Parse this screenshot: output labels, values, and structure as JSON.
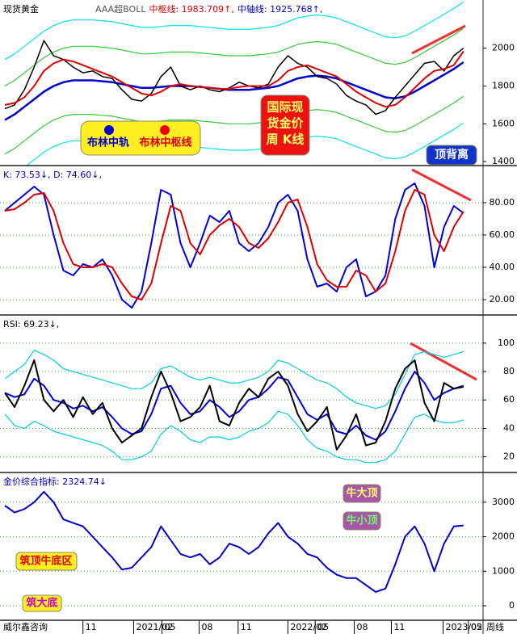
{
  "chart_data": [
    {
      "type": "line",
      "title": "现货黄金",
      "header": [
        {
          "text": "AAA超BOLL",
          "color": "#555555"
        },
        {
          "text": "中枢线: 1983.709↑,",
          "color": "#e00000"
        },
        {
          "text": "中轴线: 1925.768↑,",
          "color": "#0000cc"
        }
      ],
      "xlim": [
        -0.5,
        49
      ],
      "ylim": [
        1379,
        2255
      ],
      "yticks": [
        1400,
        1600,
        1800,
        2000
      ],
      "grid": false,
      "series": [
        {
          "color": "#00e5ee",
          "values": [
            1940,
            1970,
            2010,
            2050,
            2090,
            2120,
            2140,
            2150,
            2150,
            2150,
            2145,
            2140,
            2130,
            2120,
            2110,
            2110,
            2115,
            2120,
            2120,
            2120,
            2115,
            2110,
            2105,
            2100,
            2100,
            2100,
            2105,
            2110,
            2120,
            2140,
            2160,
            2170,
            2175,
            2170,
            2160,
            2140,
            2120,
            2100,
            2080,
            2060,
            2055,
            2065,
            2090,
            2120,
            2150,
            2180,
            2210,
            2245
          ]
        },
        {
          "color": "#00e5ee",
          "values": [
            1300,
            1330,
            1370,
            1410,
            1450,
            1480,
            1500,
            1510,
            1510,
            1510,
            1505,
            1500,
            1490,
            1480,
            1470,
            1470,
            1475,
            1480,
            1480,
            1480,
            1475,
            1470,
            1465,
            1460,
            1460,
            1460,
            1465,
            1470,
            1480,
            1500,
            1520,
            1530,
            1535,
            1530,
            1520,
            1500,
            1480,
            1460,
            1440,
            1420,
            1415,
            1425,
            1450,
            1480,
            1510,
            1540,
            1570,
            1605
          ]
        },
        {
          "color": "#33cc33",
          "values": [
            1800,
            1830,
            1870,
            1910,
            1950,
            1980,
            2000,
            2010,
            2010,
            2010,
            2005,
            2000,
            1990,
            1980,
            1970,
            1970,
            1975,
            1980,
            1980,
            1980,
            1975,
            1970,
            1965,
            1960,
            1960,
            1960,
            1965,
            1970,
            1980,
            2000,
            2020,
            2030,
            2035,
            2030,
            2020,
            2000,
            1980,
            1960,
            1940,
            1920,
            1915,
            1925,
            1950,
            1980,
            2010,
            2040,
            2070,
            2105
          ]
        },
        {
          "color": "#33cc33",
          "values": [
            1440,
            1470,
            1510,
            1550,
            1590,
            1620,
            1640,
            1650,
            1650,
            1650,
            1645,
            1640,
            1630,
            1620,
            1610,
            1610,
            1615,
            1620,
            1620,
            1620,
            1615,
            1610,
            1605,
            1600,
            1600,
            1600,
            1605,
            1610,
            1620,
            1640,
            1660,
            1670,
            1675,
            1670,
            1660,
            1640,
            1620,
            1600,
            1580,
            1560,
            1555,
            1565,
            1590,
            1620,
            1650,
            1680,
            1710,
            1745
          ]
        },
        {
          "color": "#0000cc",
          "width": 2.5,
          "values": [
            1620,
            1650,
            1690,
            1730,
            1770,
            1800,
            1820,
            1830,
            1830,
            1830,
            1825,
            1820,
            1810,
            1800,
            1790,
            1790,
            1795,
            1800,
            1800,
            1800,
            1795,
            1790,
            1785,
            1780,
            1780,
            1780,
            1785,
            1790,
            1800,
            1820,
            1840,
            1850,
            1855,
            1850,
            1840,
            1820,
            1800,
            1780,
            1760,
            1740,
            1735,
            1745,
            1770,
            1800,
            1830,
            1860,
            1890,
            1925.768
          ]
        },
        {
          "color": "#000000",
          "width": 1.5,
          "values": [
            1680,
            1700,
            1780,
            1900,
            2040,
            1960,
            1940,
            1900,
            1870,
            1880,
            1850,
            1840,
            1780,
            1730,
            1720,
            1760,
            1850,
            1900,
            1800,
            1780,
            1800,
            1780,
            1770,
            1790,
            1820,
            1800,
            1790,
            1810,
            1900,
            1960,
            1920,
            1900,
            1850,
            1840,
            1810,
            1750,
            1720,
            1700,
            1650,
            1670,
            1740,
            1800,
            1860,
            1920,
            1930,
            1880,
            1960,
            2000
          ]
        },
        {
          "color": "#e00000",
          "width": 2,
          "values": [
            1700,
            1710,
            1740,
            1800,
            1880,
            1920,
            1940,
            1930,
            1910,
            1890,
            1870,
            1850,
            1820,
            1790,
            1760,
            1750,
            1770,
            1800,
            1810,
            1800,
            1795,
            1790,
            1785,
            1785,
            1795,
            1800,
            1800,
            1800,
            1830,
            1880,
            1900,
            1910,
            1890,
            1870,
            1850,
            1810,
            1770,
            1740,
            1710,
            1690,
            1700,
            1740,
            1790,
            1840,
            1880,
            1890,
            1910,
            1983.709
          ]
        }
      ],
      "annotations": [
        {
          "lines": [
            "布林中轨"
          ],
          "color": "#0000cc"
        },
        {
          "lines": [
            "布林中枢线"
          ],
          "color": "#e00000"
        },
        {
          "lines": [
            "国际现",
            "货金价",
            "周  K线"
          ],
          "color": "#ffff66"
        },
        {
          "lines": [
            "顶背离"
          ],
          "color": "#ffffff"
        }
      ]
    },
    {
      "type": "line",
      "title": "K: 73.53↓, D: 74.60↓,",
      "title_color": "#0000cc",
      "xlim": [
        -0.5,
        49
      ],
      "ylim": [
        10.5,
        103
      ],
      "grid": true,
      "yticks": [
        {
          "value": 20,
          "label": "20.00"
        },
        {
          "value": 40,
          "label": "40.00"
        },
        {
          "value": 60,
          "label": "60.00"
        },
        {
          "value": 80,
          "label": "80.00"
        }
      ],
      "series": [
        {
          "color": "#0000dd",
          "width": 2,
          "values": [
            75,
            80,
            85,
            90,
            85,
            60,
            38,
            35,
            42,
            40,
            45,
            35,
            20,
            15,
            25,
            55,
            88,
            85,
            55,
            40,
            55,
            72,
            68,
            75,
            55,
            50,
            55,
            65,
            80,
            85,
            75,
            45,
            28,
            30,
            25,
            40,
            45,
            22,
            25,
            35,
            70,
            88,
            92,
            78,
            40,
            65,
            78,
            73.53
          ]
        },
        {
          "color": "#e00000",
          "width": 2,
          "values": [
            75,
            76,
            80,
            85,
            86,
            75,
            55,
            42,
            40,
            40,
            42,
            40,
            30,
            22,
            20,
            30,
            55,
            78,
            75,
            55,
            48,
            60,
            66,
            70,
            65,
            55,
            52,
            58,
            68,
            80,
            82,
            65,
            42,
            32,
            28,
            28,
            38,
            35,
            25,
            30,
            50,
            75,
            88,
            85,
            60,
            50,
            65,
            74.6
          ]
        }
      ]
    },
    {
      "type": "line",
      "title": "RSI: 69.23↓,",
      "title_color": "#000000",
      "xlim": [
        -0.5,
        49
      ],
      "ylim": [
        9,
        119.8
      ],
      "yticks": [
        20,
        40,
        60,
        80,
        100
      ],
      "grid": true,
      "series": [
        {
          "color": "#00d0e0",
          "values": [
            75,
            80,
            85,
            95,
            92,
            88,
            82,
            80,
            78,
            76,
            74,
            72,
            70,
            68,
            68,
            72,
            82,
            84,
            80,
            76,
            74,
            76,
            74,
            72,
            72,
            74,
            76,
            80,
            88,
            86,
            82,
            78,
            74,
            72,
            68,
            62,
            58,
            56,
            54,
            56,
            64,
            78,
            92,
            94,
            92,
            90,
            92,
            94
          ]
        },
        {
          "color": "#00d0e0",
          "values": [
            50,
            42,
            40,
            45,
            42,
            38,
            36,
            34,
            32,
            30,
            28,
            24,
            18,
            18,
            20,
            24,
            36,
            42,
            38,
            32,
            30,
            34,
            34,
            32,
            34,
            38,
            40,
            44,
            52,
            50,
            42,
            32,
            26,
            24,
            20,
            18,
            18,
            16,
            16,
            18,
            24,
            36,
            48,
            50,
            46,
            44,
            44,
            46
          ]
        },
        {
          "color": "#0000dd",
          "width": 2,
          "values": [
            65,
            62,
            64,
            75,
            70,
            60,
            58,
            54,
            56,
            52,
            55,
            48,
            40,
            36,
            38,
            50,
            68,
            70,
            58,
            50,
            52,
            60,
            55,
            48,
            52,
            60,
            62,
            68,
            76,
            74,
            62,
            50,
            46,
            50,
            38,
            36,
            42,
            35,
            32,
            38,
            52,
            68,
            80,
            72,
            60,
            65,
            68,
            70
          ]
        },
        {
          "color": "#000000",
          "width": 2,
          "values": [
            65,
            55,
            70,
            88,
            60,
            52,
            60,
            48,
            62,
            50,
            58,
            40,
            30,
            35,
            40,
            62,
            80,
            65,
            45,
            48,
            55,
            70,
            45,
            42,
            58,
            68,
            62,
            75,
            80,
            70,
            50,
            38,
            45,
            55,
            25,
            35,
            50,
            28,
            30,
            45,
            68,
            82,
            88,
            58,
            45,
            72,
            68,
            69.23
          ]
        }
      ]
    },
    {
      "type": "line",
      "title": "金价综合指标: 2324.74↓",
      "title_color": "#0000cc",
      "xlim": [
        -0.5,
        49
      ],
      "ylim": [
        -420,
        3860
      ],
      "yticks": [
        0,
        1000,
        2000,
        3000
      ],
      "grid": true,
      "xticks": [
        {
          "value": 8.0,
          "label": "11"
        },
        {
          "value": 13.2,
          "label": "2021/02"
        },
        {
          "value": 16.1,
          "label": "05"
        },
        {
          "value": 19.9,
          "label": "08"
        },
        {
          "value": 23.9,
          "label": "11"
        },
        {
          "value": 29.0,
          "label": "2022/02"
        },
        {
          "value": 31.8,
          "label": "05"
        },
        {
          "value": 35.8,
          "label": "08"
        },
        {
          "value": 39.6,
          "label": "11"
        },
        {
          "value": 44.9,
          "label": "2023/02"
        },
        {
          "value": 47.5,
          "label": "05"
        }
      ],
      "series": [
        {
          "color": "#0000cc",
          "width": 2,
          "values": [
            2900,
            2700,
            2800,
            3000,
            3300,
            3000,
            2500,
            2400,
            2300,
            2000,
            1700,
            1400,
            1050,
            1100,
            1400,
            1700,
            2300,
            1900,
            1500,
            1400,
            1500,
            1200,
            1400,
            1800,
            1700,
            1500,
            1700,
            2100,
            2400,
            2000,
            1800,
            1500,
            1400,
            1100,
            900,
            800,
            800,
            600,
            400,
            500,
            1200,
            2000,
            2300,
            1800,
            1000,
            1800,
            2300,
            2324.74
          ]
        }
      ],
      "annotations": [
        {
          "lines": [
            "牛大顶"
          ],
          "color": "#ffff66"
        },
        {
          "lines": [
            "牛小顶"
          ],
          "color": "#66ff66"
        },
        {
          "lines": [
            "筑顶牛底区"
          ],
          "color": "#e00000"
        },
        {
          "lines": [
            "筑大底"
          ],
          "color": "#cc00cc"
        }
      ]
    }
  ],
  "footer": {
    "left": "威尔鑫咨询",
    "right": "周线"
  }
}
